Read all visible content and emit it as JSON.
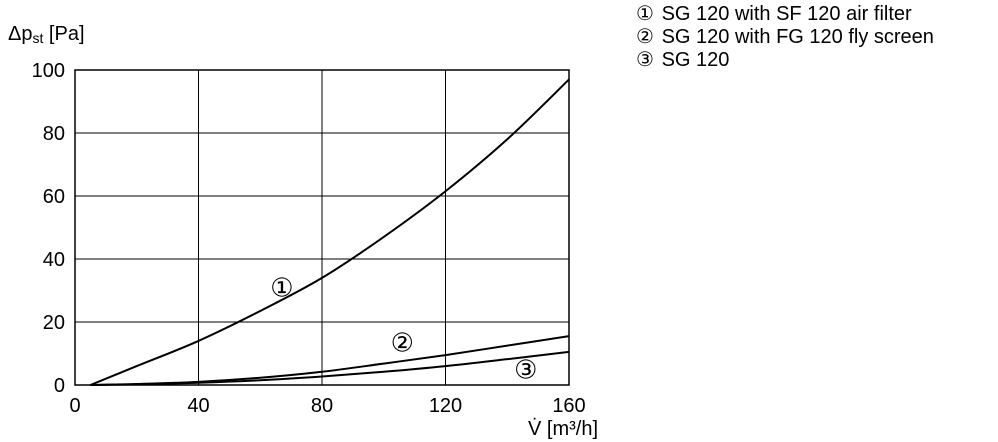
{
  "chart_data": {
    "type": "line",
    "ylabel": "Δp",
    "ylabel_sub": "st",
    "ylabel_unit": " [Pa]",
    "xlabel": "V̇",
    "xlabel_unit": " [m³/h]",
    "xlim": [
      0,
      160
    ],
    "ylim": [
      0,
      100
    ],
    "xticks": [
      0,
      40,
      80,
      120,
      160
    ],
    "yticks": [
      0,
      20,
      40,
      60,
      80,
      100
    ],
    "grid": true,
    "legend_position": "top-right, outside plot",
    "line_color": "#000000",
    "series": [
      {
        "marker": "①",
        "name": "SG 120 with SF 120 air filter",
        "x": [
          5,
          20,
          40,
          60,
          80,
          100,
          120,
          140,
          160
        ],
        "y": [
          0,
          6,
          14,
          23.5,
          34,
          47,
          61.5,
          78,
          97
        ],
        "label_at": [
          67,
          31
        ]
      },
      {
        "marker": "②",
        "name": "SG 120 with FG 120 fly screen",
        "x": [
          5,
          20,
          40,
          60,
          80,
          100,
          120,
          140,
          160
        ],
        "y": [
          0,
          0.3,
          1,
          2.3,
          4.2,
          6.8,
          9.5,
          12.5,
          15.5
        ],
        "label_at": [
          106,
          13.5
        ]
      },
      {
        "marker": "③",
        "name": "SG 120",
        "x": [
          5,
          20,
          40,
          60,
          80,
          100,
          120,
          140,
          160
        ],
        "y": [
          0,
          0.2,
          0.7,
          1.5,
          2.7,
          4.2,
          6,
          8.2,
          10.5
        ],
        "label_at": [
          146,
          5
        ]
      }
    ]
  }
}
